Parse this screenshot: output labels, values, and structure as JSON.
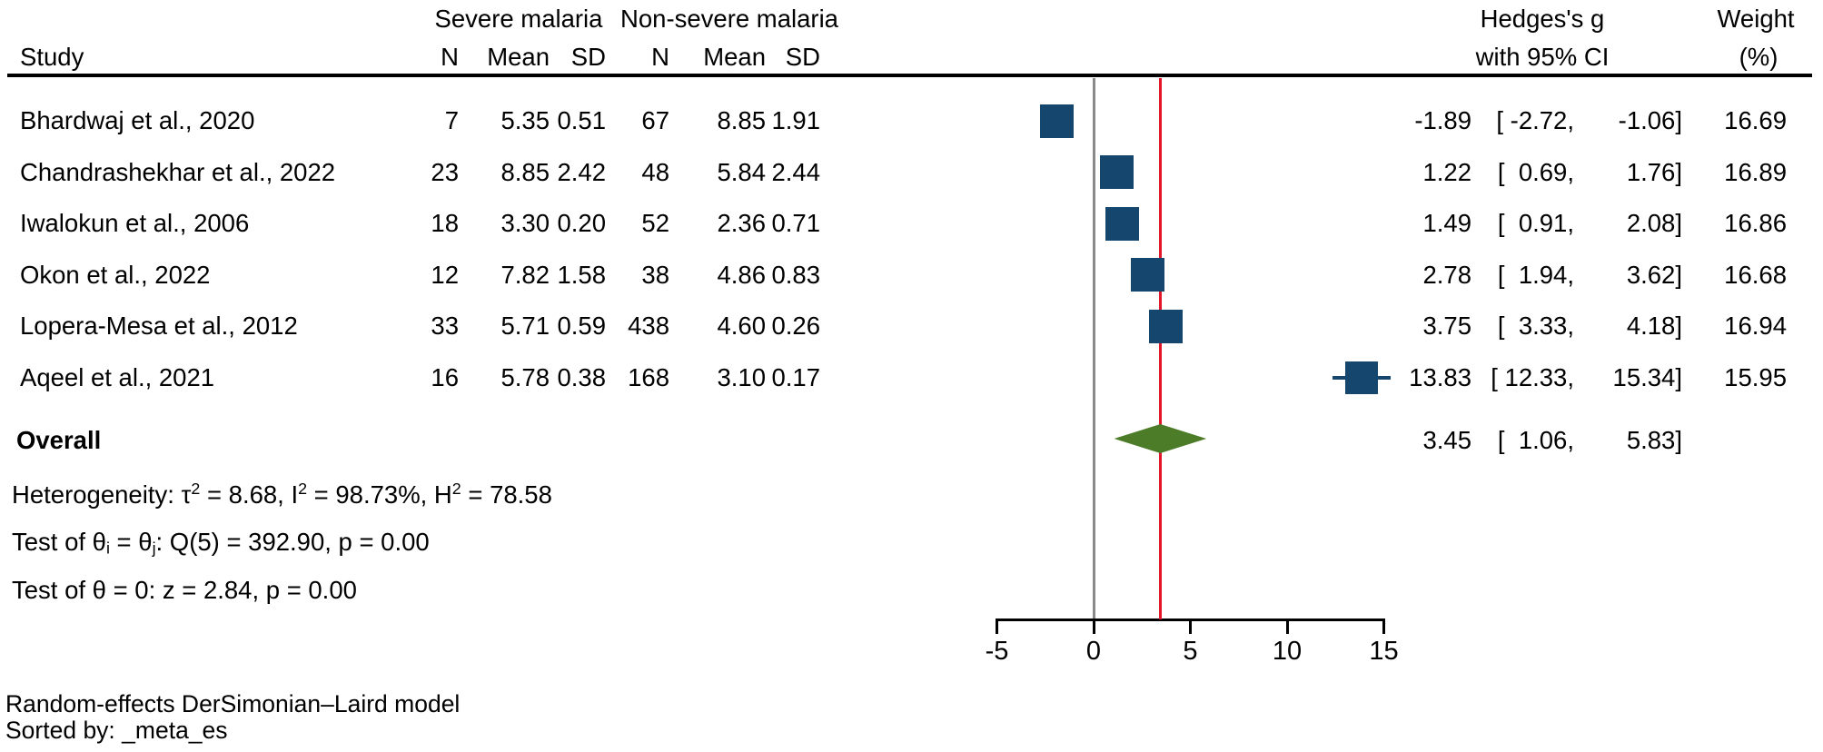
{
  "table": {
    "header": {
      "study": "Study",
      "group1": "Severe malaria",
      "group2": "Non-severe malaria",
      "n1": "N",
      "mean1": "Mean",
      "sd1": "SD",
      "n2": "N",
      "mean2": "Mean",
      "sd2": "SD",
      "es_line1": "Hedges's g",
      "es_line2": "with 95% CI",
      "weight_line1": "Weight",
      "weight_line2": "(%)"
    },
    "rows": [
      {
        "study": "Bhardwaj et al., 2020",
        "n1": "7",
        "mean1": "5.35",
        "sd1": "0.51",
        "n2": "67",
        "mean2": "8.85",
        "sd2": "1.91",
        "es": "-1.89",
        "ci_mid": "[ -2.72,",
        "ci_hi": "-1.06]",
        "weight": "16.69"
      },
      {
        "study": "Chandrashekhar et al., 2022",
        "n1": "23",
        "mean1": "8.85",
        "sd1": "2.42",
        "n2": "48",
        "mean2": "5.84",
        "sd2": "2.44",
        "es": "1.22",
        "ci_mid": "[  0.69,",
        "ci_hi": "1.76]",
        "weight": "16.89"
      },
      {
        "study": "Iwalokun et al., 2006",
        "n1": "18",
        "mean1": "3.30",
        "sd1": "0.20",
        "n2": "52",
        "mean2": "2.36",
        "sd2": "0.71",
        "es": "1.49",
        "ci_mid": "[  0.91,",
        "ci_hi": "2.08]",
        "weight": "16.86"
      },
      {
        "study": "Okon et al., 2022",
        "n1": "12",
        "mean1": "7.82",
        "sd1": "1.58",
        "n2": "38",
        "mean2": "4.86",
        "sd2": "0.83",
        "es": "2.78",
        "ci_mid": "[  1.94,",
        "ci_hi": "3.62]",
        "weight": "16.68"
      },
      {
        "study": "Lopera-Mesa et al., 2012",
        "n1": "33",
        "mean1": "5.71",
        "sd1": "0.59",
        "n2": "438",
        "mean2": "4.60",
        "sd2": "0.26",
        "es": "3.75",
        "ci_mid": "[  3.33,",
        "ci_hi": "4.18]",
        "weight": "16.94"
      },
      {
        "study": "Aqeel et al., 2021",
        "n1": "16",
        "mean1": "5.78",
        "sd1": "0.38",
        "n2": "168",
        "mean2": "3.10",
        "sd2": "0.17",
        "es": "13.83",
        "ci_mid": "[ 12.33,",
        "ci_hi": "15.34]",
        "weight": "15.95"
      }
    ],
    "overall": {
      "label": "Overall",
      "es": "3.45",
      "ci_mid": "[  1.06,",
      "ci_hi": "5.83]"
    }
  },
  "stats": {
    "het": {
      "p1": "Heterogeneity: τ",
      "s1": "2",
      "p2": " = 8.68, I",
      "s2": "2",
      "p3": " = 98.73%, H",
      "s3": "2",
      "p4": " = 78.58"
    },
    "test_q": {
      "p1": "Test of θ",
      "s1": "i",
      "p2": " = θ",
      "s2": "j",
      "p3": ": Q(5) = 392.90, p = 0.00"
    },
    "test_z": "Test of θ = 0: z = 2.84, p = 0.00"
  },
  "axis": {
    "ticks": [
      "-5",
      "0",
      "5",
      "10",
      "15"
    ]
  },
  "footer": {
    "line1": "Random-effects DerSimonian–Laird model",
    "line2": "Sorted by: _meta_es"
  },
  "chart_data": {
    "type": "forest",
    "effect_label": "Hedges's g with 95% CI",
    "xlim": [
      -5,
      15
    ],
    "ticks": [
      -5,
      0,
      5,
      10,
      15
    ],
    "zero_line": 0,
    "studies": [
      {
        "label": "Bhardwaj et al., 2020",
        "es": -1.89,
        "lo": -2.72,
        "hi": -1.06,
        "weight": 16.69
      },
      {
        "label": "Chandrashekhar et al., 2022",
        "es": 1.22,
        "lo": 0.69,
        "hi": 1.76,
        "weight": 16.89
      },
      {
        "label": "Iwalokun et al., 2006",
        "es": 1.49,
        "lo": 0.91,
        "hi": 2.08,
        "weight": 16.86
      },
      {
        "label": "Okon et al., 2022",
        "es": 2.78,
        "lo": 1.94,
        "hi": 3.62,
        "weight": 16.68
      },
      {
        "label": "Lopera-Mesa et al., 2012",
        "es": 3.75,
        "lo": 3.33,
        "hi": 4.18,
        "weight": 16.94
      },
      {
        "label": "Aqeel et al., 2021",
        "es": 13.83,
        "lo": 12.33,
        "hi": 15.34,
        "weight": 15.95
      }
    ],
    "overall": {
      "es": 3.45,
      "lo": 1.06,
      "hi": 5.83
    },
    "heterogeneity": {
      "tau2": 8.68,
      "I2_pct": 98.73,
      "H2": 78.58,
      "Q_df": 5,
      "Q": 392.9,
      "p_Q": 0.0,
      "z": 2.84,
      "p_z": 0.0
    },
    "colors": {
      "marker": "#15466e",
      "diamond": "#4c7c28",
      "ref_line": "#e2182a",
      "zero_line": "#8a8a8a"
    }
  }
}
